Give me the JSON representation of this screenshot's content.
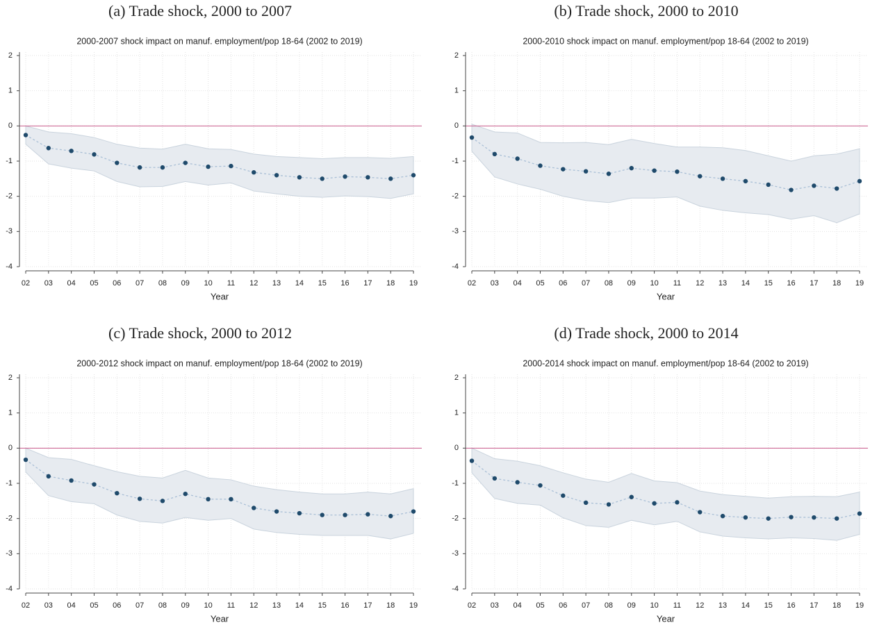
{
  "chart_data": [
    {
      "type": "line",
      "caption": "(a) Trade shock, 2000 to 2007",
      "title": "2000-2007 shock impact on manuf. employment/pop 18-64 (2002 to 2019)",
      "xlabel": "Year",
      "categories": [
        "02",
        "03",
        "04",
        "05",
        "06",
        "07",
        "08",
        "09",
        "10",
        "11",
        "12",
        "13",
        "14",
        "15",
        "16",
        "17",
        "18",
        "19"
      ],
      "values": [
        -0.26,
        -0.63,
        -0.71,
        -0.81,
        -1.05,
        -1.18,
        -1.18,
        -1.05,
        -1.16,
        -1.14,
        -1.32,
        -1.4,
        -1.46,
        -1.5,
        -1.44,
        -1.46,
        -1.5,
        -1.4
      ],
      "upper": [
        0.0,
        -0.17,
        -0.22,
        -0.33,
        -0.52,
        -0.63,
        -0.66,
        -0.52,
        -0.65,
        -0.67,
        -0.8,
        -0.87,
        -0.9,
        -0.93,
        -0.9,
        -0.9,
        -0.92,
        -0.87
      ],
      "lower": [
        -0.52,
        -1.08,
        -1.2,
        -1.28,
        -1.58,
        -1.73,
        -1.72,
        -1.58,
        -1.68,
        -1.62,
        -1.85,
        -1.93,
        -2.0,
        -2.03,
        -1.99,
        -2.01,
        -2.06,
        -1.93
      ],
      "ylim": [
        -4,
        2
      ],
      "yticks": [
        -4,
        -3,
        -2,
        -1,
        0,
        1,
        2
      ],
      "refline": 0,
      "grid": true,
      "color": "#1f4a6b",
      "line_color": "#a9bfd6",
      "band_color": "#e7ebf0",
      "refline_color": "#c8578a"
    },
    {
      "type": "line",
      "caption": "(b) Trade shock, 2000 to 2010",
      "title": "2000-2010 shock impact on manuf. employment/pop 18-64 (2002 to 2019)",
      "xlabel": "Year",
      "categories": [
        "02",
        "03",
        "04",
        "05",
        "06",
        "07",
        "08",
        "09",
        "10",
        "11",
        "12",
        "13",
        "14",
        "15",
        "16",
        "17",
        "18",
        "19"
      ],
      "values": [
        -0.33,
        -0.8,
        -0.93,
        -1.13,
        -1.23,
        -1.29,
        -1.36,
        -1.2,
        -1.27,
        -1.3,
        -1.43,
        -1.5,
        -1.57,
        -1.67,
        -1.82,
        -1.7,
        -1.78,
        -1.57
      ],
      "upper": [
        0.05,
        -0.17,
        -0.2,
        -0.47,
        -0.48,
        -0.47,
        -0.53,
        -0.38,
        -0.5,
        -0.6,
        -0.6,
        -0.62,
        -0.7,
        -0.85,
        -1.0,
        -0.85,
        -0.8,
        -0.65
      ],
      "lower": [
        -0.72,
        -1.45,
        -1.65,
        -1.8,
        -2.0,
        -2.12,
        -2.18,
        -2.05,
        -2.05,
        -2.02,
        -2.28,
        -2.4,
        -2.47,
        -2.52,
        -2.65,
        -2.55,
        -2.75,
        -2.5
      ],
      "ylim": [
        -4,
        2
      ],
      "yticks": [
        -4,
        -3,
        -2,
        -1,
        0,
        1,
        2
      ],
      "refline": 0,
      "grid": true,
      "color": "#1f4a6b",
      "line_color": "#a9bfd6",
      "band_color": "#e7ebf0",
      "refline_color": "#c8578a"
    },
    {
      "type": "line",
      "caption": "(c) Trade shock, 2000 to 2012",
      "title": "2000-2012 shock impact on manuf. employment/pop 18-64 (2002 to 2019)",
      "xlabel": "Year",
      "categories": [
        "02",
        "03",
        "04",
        "05",
        "06",
        "07",
        "08",
        "09",
        "10",
        "11",
        "12",
        "13",
        "14",
        "15",
        "16",
        "17",
        "18",
        "19"
      ],
      "values": [
        -0.33,
        -0.8,
        -0.92,
        -1.03,
        -1.28,
        -1.44,
        -1.5,
        -1.3,
        -1.45,
        -1.45,
        -1.7,
        -1.8,
        -1.85,
        -1.9,
        -1.9,
        -1.88,
        -1.93,
        -1.8
      ],
      "upper": [
        0.0,
        -0.27,
        -0.32,
        -0.5,
        -0.67,
        -0.8,
        -0.85,
        -0.63,
        -0.85,
        -0.9,
        -1.08,
        -1.18,
        -1.25,
        -1.3,
        -1.3,
        -1.25,
        -1.3,
        -1.15
      ],
      "lower": [
        -0.68,
        -1.35,
        -1.52,
        -1.58,
        -1.9,
        -2.08,
        -2.13,
        -1.97,
        -2.05,
        -2.0,
        -2.3,
        -2.4,
        -2.45,
        -2.48,
        -2.48,
        -2.48,
        -2.58,
        -2.42
      ],
      "ylim": [
        -4,
        2
      ],
      "yticks": [
        -4,
        -3,
        -2,
        -1,
        0,
        1,
        2
      ],
      "refline": 0,
      "grid": true,
      "color": "#1f4a6b",
      "line_color": "#a9bfd6",
      "band_color": "#e7ebf0",
      "refline_color": "#c8578a"
    },
    {
      "type": "line",
      "caption": "(d) Trade shock, 2000 to 2014",
      "title": "2000-2014 shock impact on manuf. employment/pop 18-64 (2002 to 2019)",
      "xlabel": "Year",
      "categories": [
        "02",
        "03",
        "04",
        "05",
        "06",
        "07",
        "08",
        "09",
        "10",
        "11",
        "12",
        "13",
        "14",
        "15",
        "16",
        "17",
        "18",
        "19"
      ],
      "values": [
        -0.36,
        -0.86,
        -0.97,
        -1.06,
        -1.35,
        -1.55,
        -1.6,
        -1.39,
        -1.57,
        -1.54,
        -1.82,
        -1.93,
        -1.97,
        -2.0,
        -1.96,
        -1.97,
        -2.0,
        -1.86
      ],
      "upper": [
        0.0,
        -0.3,
        -0.37,
        -0.5,
        -0.7,
        -0.88,
        -0.97,
        -0.72,
        -0.93,
        -0.98,
        -1.22,
        -1.32,
        -1.37,
        -1.42,
        -1.38,
        -1.37,
        -1.38,
        -1.25
      ],
      "lower": [
        -0.7,
        -1.43,
        -1.57,
        -1.62,
        -1.98,
        -2.2,
        -2.25,
        -2.05,
        -2.18,
        -2.08,
        -2.38,
        -2.5,
        -2.55,
        -2.58,
        -2.55,
        -2.57,
        -2.62,
        -2.45
      ],
      "ylim": [
        -4,
        2
      ],
      "yticks": [
        -4,
        -3,
        -2,
        -1,
        0,
        1,
        2
      ],
      "refline": 0,
      "grid": true,
      "color": "#1f4a6b",
      "line_color": "#a9bfd6",
      "band_color": "#e7ebf0",
      "refline_color": "#c8578a"
    }
  ]
}
